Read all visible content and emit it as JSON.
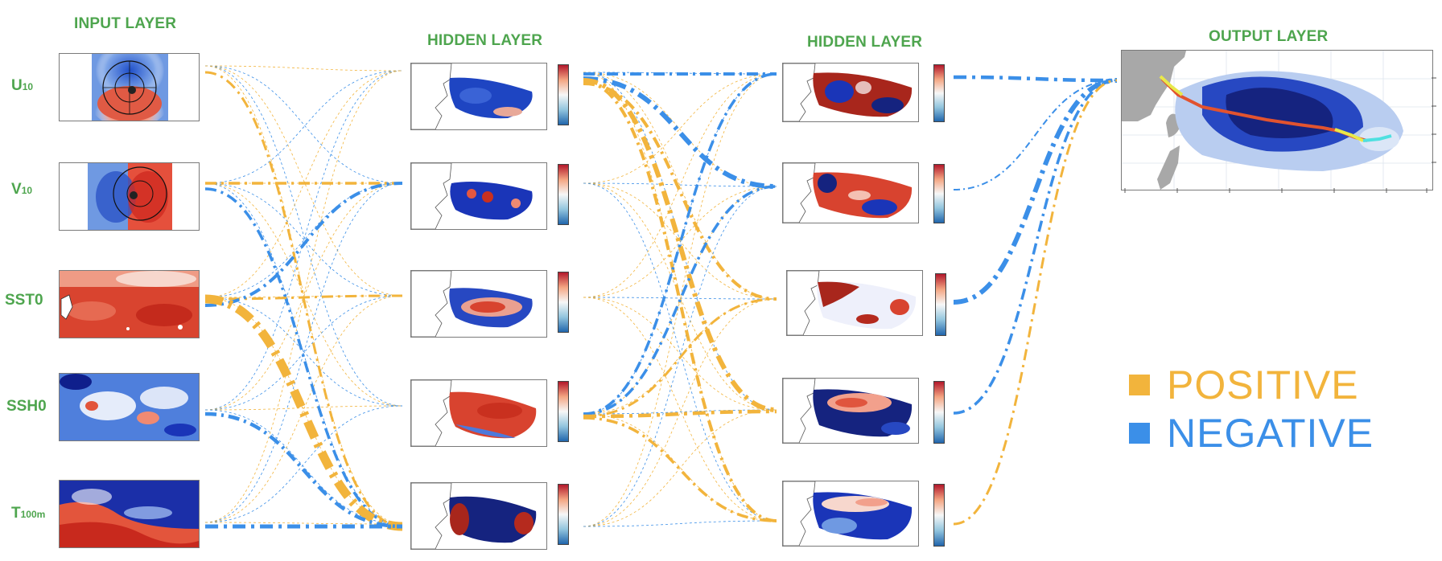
{
  "titles": {
    "input": "INPUT LAYER",
    "hidden1": "HIDDEN LAYER",
    "hidden2": "HIDDEN LAYER",
    "output": "OUTPUT LAYER"
  },
  "inputs": [
    {
      "main": "U",
      "sub": "10"
    },
    {
      "main": "V",
      "sub": "10"
    },
    {
      "main": "SST0",
      "sub": ""
    },
    {
      "main": "SSH0",
      "sub": ""
    },
    {
      "main": "T",
      "sub": "100m"
    }
  ],
  "legend": {
    "positive": "POSITIVE",
    "negative": "NEGATIVE"
  },
  "colors": {
    "positive": "#f2b43c",
    "negative": "#3b8fe8",
    "title_green": "#4ea54e",
    "map_red": "#c9301f",
    "map_blue": "#1a35b8",
    "land_gray": "#a8a8a8"
  }
}
